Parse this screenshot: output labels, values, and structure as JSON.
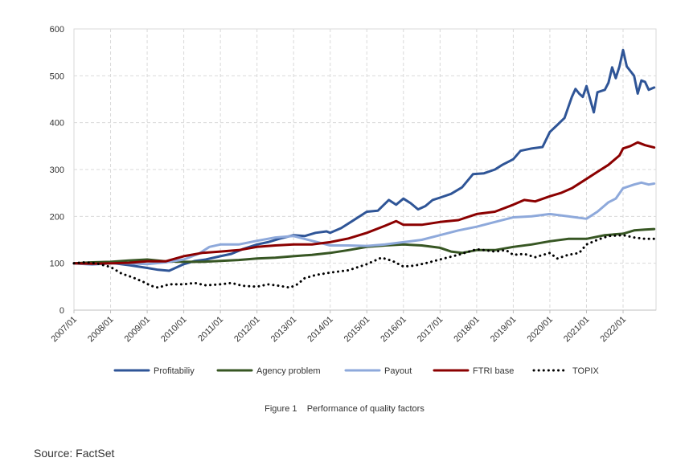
{
  "chart_data": {
    "type": "line",
    "title": "",
    "xlabel": "",
    "ylabel": "",
    "ylim": [
      0,
      600
    ],
    "yticks": [
      0,
      100,
      200,
      300,
      400,
      500,
      600
    ],
    "xlim": [
      2007.0,
      2022.9
    ],
    "grid": true,
    "legend_position": "bottom",
    "x_tick_labels": [
      "2007/01",
      "2008/01",
      "2009/01",
      "2010/01",
      "2011/01",
      "2012/01",
      "2013/01",
      "2014/01",
      "2015/01",
      "2016/01",
      "2017/01",
      "2018/01",
      "2019/01",
      "2020/01",
      "2021/01",
      "2022/01"
    ],
    "series": [
      {
        "name": "Profitabiliy",
        "color": "#2F5597",
        "style": "solid",
        "points": [
          [
            2007.0,
            100
          ],
          [
            2007.5,
            98
          ],
          [
            2008.0,
            101
          ],
          [
            2008.5,
            96
          ],
          [
            2009.0,
            90
          ],
          [
            2009.3,
            86
          ],
          [
            2009.6,
            84
          ],
          [
            2010.0,
            98
          ],
          [
            2010.3,
            105
          ],
          [
            2010.6,
            108
          ],
          [
            2011.0,
            115
          ],
          [
            2011.3,
            120
          ],
          [
            2011.6,
            130
          ],
          [
            2012.0,
            140
          ],
          [
            2012.3,
            145
          ],
          [
            2012.6,
            152
          ],
          [
            2013.0,
            160
          ],
          [
            2013.3,
            158
          ],
          [
            2013.6,
            165
          ],
          [
            2013.9,
            168
          ],
          [
            2014.0,
            165
          ],
          [
            2014.3,
            175
          ],
          [
            2014.6,
            190
          ],
          [
            2015.0,
            210
          ],
          [
            2015.3,
            212
          ],
          [
            2015.6,
            235
          ],
          [
            2015.8,
            225
          ],
          [
            2016.0,
            238
          ],
          [
            2016.2,
            228
          ],
          [
            2016.4,
            215
          ],
          [
            2016.6,
            222
          ],
          [
            2016.8,
            235
          ],
          [
            2017.0,
            240
          ],
          [
            2017.3,
            248
          ],
          [
            2017.6,
            262
          ],
          [
            2017.9,
            290
          ],
          [
            2018.2,
            292
          ],
          [
            2018.5,
            300
          ],
          [
            2018.7,
            310
          ],
          [
            2019.0,
            322
          ],
          [
            2019.2,
            340
          ],
          [
            2019.5,
            345
          ],
          [
            2019.8,
            348
          ],
          [
            2020.0,
            380
          ],
          [
            2020.2,
            395
          ],
          [
            2020.4,
            410
          ],
          [
            2020.6,
            455
          ],
          [
            2020.7,
            472
          ],
          [
            2020.8,
            462
          ],
          [
            2020.9,
            455
          ],
          [
            2021.0,
            478
          ],
          [
            2021.1,
            450
          ],
          [
            2021.2,
            422
          ],
          [
            2021.3,
            465
          ],
          [
            2021.5,
            470
          ],
          [
            2021.6,
            485
          ],
          [
            2021.7,
            518
          ],
          [
            2021.8,
            495
          ],
          [
            2021.9,
            520
          ],
          [
            2022.0,
            555
          ],
          [
            2022.1,
            520
          ],
          [
            2022.3,
            500
          ],
          [
            2022.4,
            462
          ],
          [
            2022.5,
            490
          ],
          [
            2022.6,
            487
          ],
          [
            2022.7,
            470
          ],
          [
            2022.85,
            475
          ]
        ]
      },
      {
        "name": "Agency problem",
        "color": "#375623",
        "style": "solid",
        "points": [
          [
            2007.0,
            100
          ],
          [
            2007.5,
            102
          ],
          [
            2008.0,
            103
          ],
          [
            2008.5,
            106
          ],
          [
            2009.0,
            108
          ],
          [
            2009.5,
            104
          ],
          [
            2010.0,
            103
          ],
          [
            2010.5,
            103
          ],
          [
            2011.0,
            105
          ],
          [
            2011.5,
            107
          ],
          [
            2012.0,
            110
          ],
          [
            2012.5,
            112
          ],
          [
            2013.0,
            115
          ],
          [
            2013.5,
            118
          ],
          [
            2014.0,
            122
          ],
          [
            2014.5,
            128
          ],
          [
            2015.0,
            135
          ],
          [
            2015.5,
            138
          ],
          [
            2016.0,
            140
          ],
          [
            2016.5,
            138
          ],
          [
            2017.0,
            133
          ],
          [
            2017.3,
            125
          ],
          [
            2017.6,
            122
          ],
          [
            2018.0,
            128
          ],
          [
            2018.5,
            128
          ],
          [
            2019.0,
            135
          ],
          [
            2019.5,
            140
          ],
          [
            2020.0,
            147
          ],
          [
            2020.5,
            152
          ],
          [
            2021.0,
            152
          ],
          [
            2021.5,
            160
          ],
          [
            2022.0,
            163
          ],
          [
            2022.3,
            170
          ],
          [
            2022.6,
            172
          ],
          [
            2022.85,
            173
          ]
        ]
      },
      {
        "name": "Payout",
        "color": "#8EA9DB",
        "style": "solid",
        "points": [
          [
            2007.0,
            100
          ],
          [
            2007.5,
            97
          ],
          [
            2008.0,
            100
          ],
          [
            2008.5,
            100
          ],
          [
            2009.0,
            98
          ],
          [
            2009.5,
            102
          ],
          [
            2010.0,
            108
          ],
          [
            2010.4,
            120
          ],
          [
            2010.7,
            135
          ],
          [
            2011.0,
            140
          ],
          [
            2011.5,
            140
          ],
          [
            2012.0,
            148
          ],
          [
            2012.5,
            155
          ],
          [
            2013.0,
            158
          ],
          [
            2013.5,
            148
          ],
          [
            2014.0,
            138
          ],
          [
            2014.5,
            138
          ],
          [
            2015.0,
            137
          ],
          [
            2015.5,
            140
          ],
          [
            2016.0,
            145
          ],
          [
            2016.5,
            150
          ],
          [
            2017.0,
            160
          ],
          [
            2017.5,
            170
          ],
          [
            2018.0,
            178
          ],
          [
            2018.5,
            188
          ],
          [
            2019.0,
            198
          ],
          [
            2019.5,
            200
          ],
          [
            2020.0,
            205
          ],
          [
            2020.5,
            200
          ],
          [
            2021.0,
            195
          ],
          [
            2021.3,
            210
          ],
          [
            2021.6,
            230
          ],
          [
            2021.8,
            238
          ],
          [
            2022.0,
            260
          ],
          [
            2022.3,
            268
          ],
          [
            2022.5,
            272
          ],
          [
            2022.7,
            268
          ],
          [
            2022.85,
            270
          ]
        ]
      },
      {
        "name": "FTRI base",
        "color": "#8B0000",
        "style": "solid",
        "points": [
          [
            2007.0,
            100
          ],
          [
            2007.5,
            99
          ],
          [
            2008.0,
            100
          ],
          [
            2008.5,
            101
          ],
          [
            2009.0,
            104
          ],
          [
            2009.5,
            104
          ],
          [
            2010.0,
            115
          ],
          [
            2010.5,
            122
          ],
          [
            2011.0,
            125
          ],
          [
            2011.5,
            128
          ],
          [
            2012.0,
            135
          ],
          [
            2012.5,
            138
          ],
          [
            2013.0,
            140
          ],
          [
            2013.5,
            140
          ],
          [
            2014.0,
            145
          ],
          [
            2014.5,
            153
          ],
          [
            2015.0,
            165
          ],
          [
            2015.5,
            180
          ],
          [
            2015.8,
            190
          ],
          [
            2016.0,
            182
          ],
          [
            2016.5,
            182
          ],
          [
            2017.0,
            188
          ],
          [
            2017.5,
            192
          ],
          [
            2018.0,
            205
          ],
          [
            2018.5,
            210
          ],
          [
            2019.0,
            225
          ],
          [
            2019.3,
            235
          ],
          [
            2019.6,
            232
          ],
          [
            2020.0,
            243
          ],
          [
            2020.3,
            250
          ],
          [
            2020.6,
            260
          ],
          [
            2021.0,
            280
          ],
          [
            2021.3,
            295
          ],
          [
            2021.6,
            310
          ],
          [
            2021.9,
            330
          ],
          [
            2022.0,
            345
          ],
          [
            2022.2,
            350
          ],
          [
            2022.4,
            358
          ],
          [
            2022.6,
            352
          ],
          [
            2022.85,
            347
          ]
        ]
      },
      {
        "name": "TOPIX",
        "color": "#000000",
        "style": "dotted",
        "points": [
          [
            2007.0,
            100
          ],
          [
            2007.3,
            102
          ],
          [
            2007.6,
            100
          ],
          [
            2008.0,
            92
          ],
          [
            2008.3,
            78
          ],
          [
            2008.6,
            70
          ],
          [
            2008.9,
            60
          ],
          [
            2009.1,
            52
          ],
          [
            2009.3,
            48
          ],
          [
            2009.6,
            55
          ],
          [
            2010.0,
            55
          ],
          [
            2010.3,
            58
          ],
          [
            2010.6,
            53
          ],
          [
            2011.0,
            55
          ],
          [
            2011.3,
            58
          ],
          [
            2011.6,
            52
          ],
          [
            2012.0,
            50
          ],
          [
            2012.3,
            55
          ],
          [
            2012.6,
            52
          ],
          [
            2012.9,
            48
          ],
          [
            2013.1,
            55
          ],
          [
            2013.3,
            68
          ],
          [
            2013.6,
            75
          ],
          [
            2014.0,
            80
          ],
          [
            2014.5,
            85
          ],
          [
            2015.0,
            98
          ],
          [
            2015.4,
            112
          ],
          [
            2015.7,
            105
          ],
          [
            2016.0,
            93
          ],
          [
            2016.3,
            95
          ],
          [
            2016.6,
            100
          ],
          [
            2017.0,
            108
          ],
          [
            2017.5,
            118
          ],
          [
            2018.0,
            130
          ],
          [
            2018.5,
            125
          ],
          [
            2018.8,
            128
          ],
          [
            2019.0,
            118
          ],
          [
            2019.3,
            120
          ],
          [
            2019.6,
            113
          ],
          [
            2020.0,
            122
          ],
          [
            2020.2,
            110
          ],
          [
            2020.5,
            118
          ],
          [
            2020.8,
            122
          ],
          [
            2021.0,
            140
          ],
          [
            2021.3,
            150
          ],
          [
            2021.6,
            158
          ],
          [
            2022.0,
            160
          ],
          [
            2022.3,
            155
          ],
          [
            2022.6,
            152
          ],
          [
            2022.85,
            152
          ]
        ]
      }
    ]
  },
  "caption": "Figure 1    Performance of quality factors",
  "source": "Source: FactSet"
}
